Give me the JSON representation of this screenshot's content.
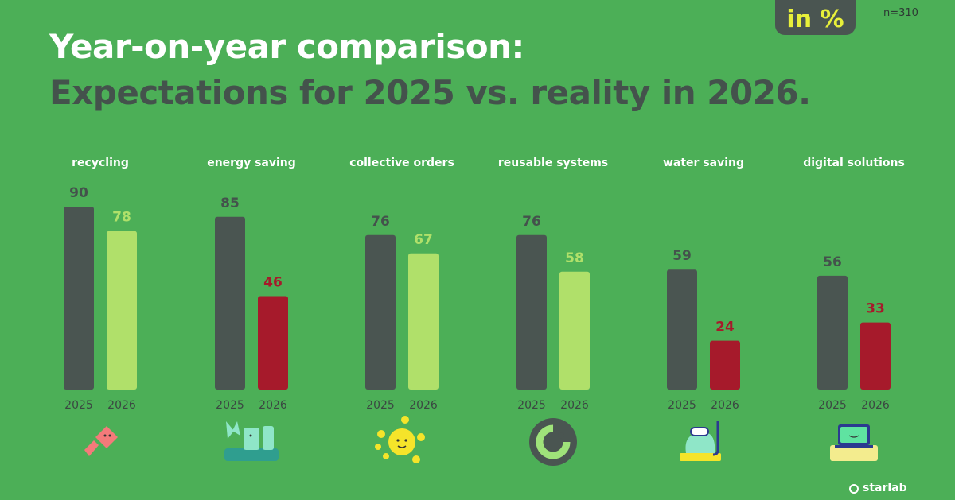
{
  "header": {
    "title_line1": "Year-on-year comparison:",
    "title_line2": "Expectations for 2025 vs. reality in 2026.",
    "unit_badge": "in %",
    "sample_size": "n=310"
  },
  "brand": {
    "text": "starlab"
  },
  "colors": {
    "background": "#4caf57",
    "expectation_2025": "#4a5551",
    "reality_up": "#b0e06a",
    "reality_down": "#a61a2b",
    "label_dark": "#44524c"
  },
  "chart_data": {
    "type": "bar",
    "categories": [
      "recycling",
      "energy saving",
      "collective orders",
      "reusable systems",
      "water saving",
      "digital solutions"
    ],
    "series": [
      {
        "name": "2025",
        "values": [
          90,
          85,
          76,
          76,
          59,
          56
        ]
      },
      {
        "name": "2026",
        "values": [
          78,
          46,
          67,
          58,
          24,
          33
        ]
      }
    ],
    "year_labels": [
      "2025",
      "2026"
    ],
    "ylim": [
      0,
      100
    ],
    "grid": false,
    "legend": "none",
    "icons": [
      "recycling-icon",
      "energy-saving-icon",
      "collective-orders-icon",
      "reusable-systems-icon",
      "water-saving-icon",
      "digital-solutions-icon"
    ]
  }
}
